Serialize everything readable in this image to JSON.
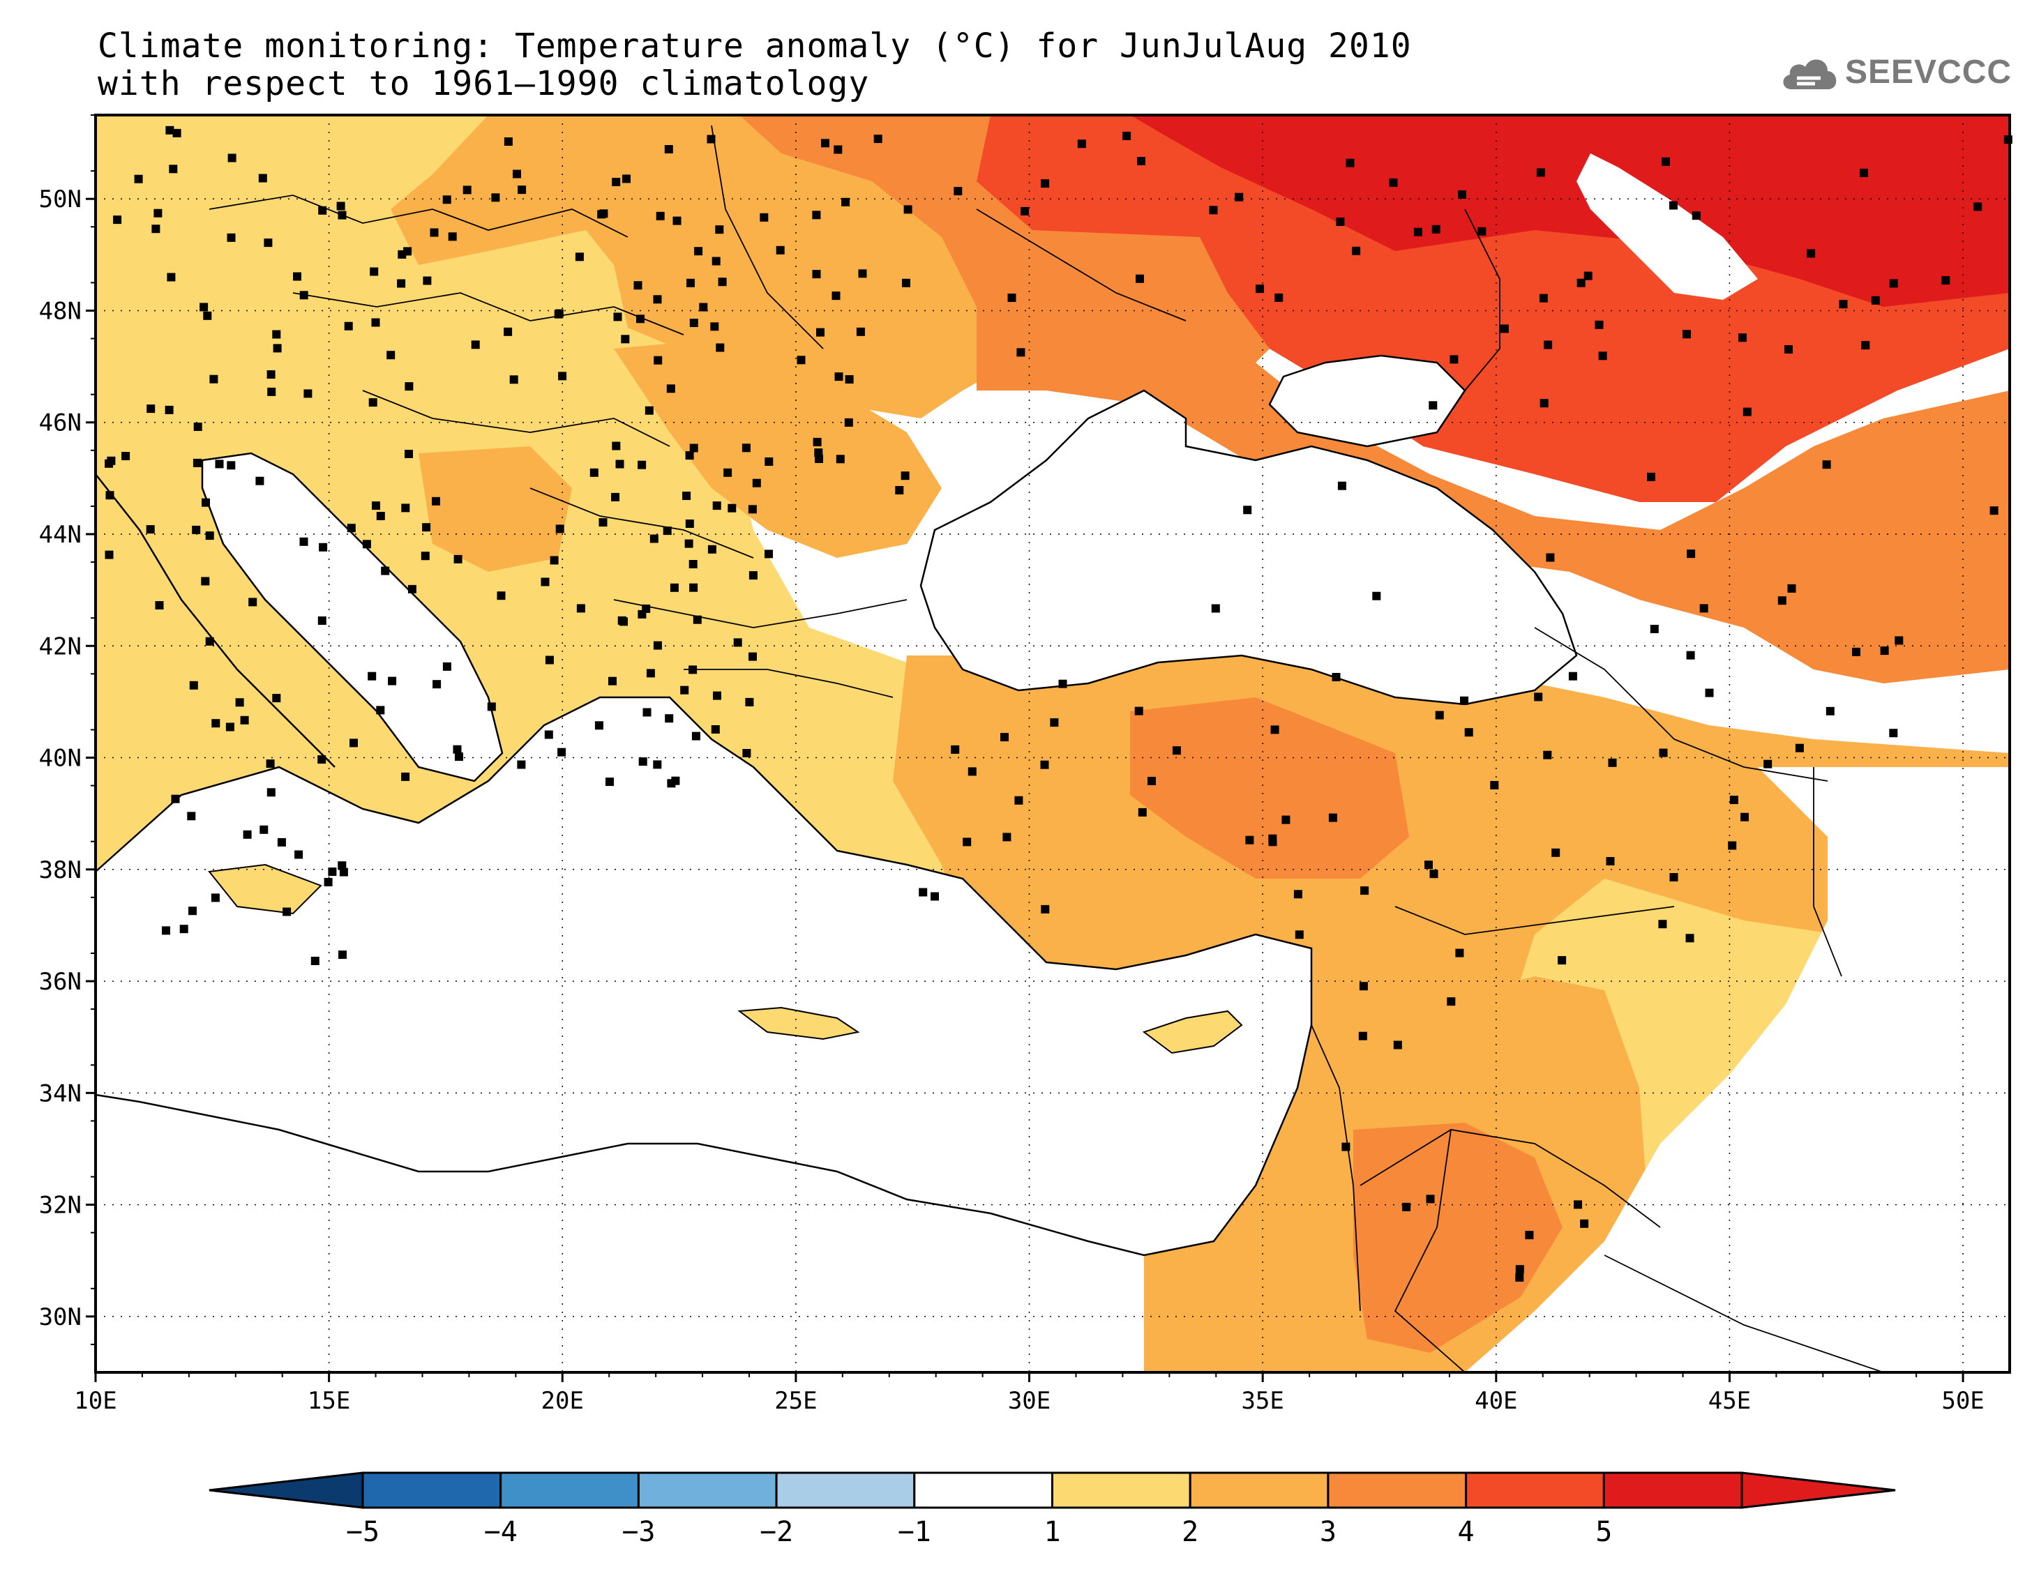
{
  "title": {
    "line1": "Climate monitoring: Temperature anomaly (°C) for JunJulAug 2010",
    "line2": "with respect to 1961–1990 climatology"
  },
  "logo": {
    "text": "SEEVCCC",
    "icon": "cloud-icon",
    "color": "#7a7a7a"
  },
  "map": {
    "lon_range": [
      10,
      51
    ],
    "lat_range": [
      29,
      51.5
    ],
    "x_ticks": [
      {
        "lon": 10,
        "label": "10E"
      },
      {
        "lon": 15,
        "label": "15E"
      },
      {
        "lon": 20,
        "label": "20E"
      },
      {
        "lon": 25,
        "label": "25E"
      },
      {
        "lon": 30,
        "label": "30E"
      },
      {
        "lon": 35,
        "label": "35E"
      },
      {
        "lon": 40,
        "label": "40E"
      },
      {
        "lon": 45,
        "label": "45E"
      },
      {
        "lon": 50,
        "label": "50E"
      }
    ],
    "y_ticks": [
      {
        "lat": 30,
        "label": "30N"
      },
      {
        "lat": 32,
        "label": "32N"
      },
      {
        "lat": 34,
        "label": "34N"
      },
      {
        "lat": 36,
        "label": "36N"
      },
      {
        "lat": 38,
        "label": "38N"
      },
      {
        "lat": 40,
        "label": "40N"
      },
      {
        "lat": 42,
        "label": "42N"
      },
      {
        "lat": 44,
        "label": "44N"
      },
      {
        "lat": 46,
        "label": "46N"
      },
      {
        "lat": 48,
        "label": "48N"
      },
      {
        "lat": 50,
        "label": "50N"
      }
    ],
    "grid": "dotted"
  },
  "colorbar": {
    "labels": [
      "−5",
      "−4",
      "−3",
      "−2",
      "−1",
      "1",
      "2",
      "3",
      "4",
      "5"
    ],
    "colors": [
      "#0b3a6e",
      "#1f68ad",
      "#3f8fc9",
      "#6fb0dc",
      "#a9cde6",
      "#ffffff",
      "#fdd972",
      "#fbb14a",
      "#f78a3a",
      "#f34a28",
      "#e01b1b"
    ]
  }
}
